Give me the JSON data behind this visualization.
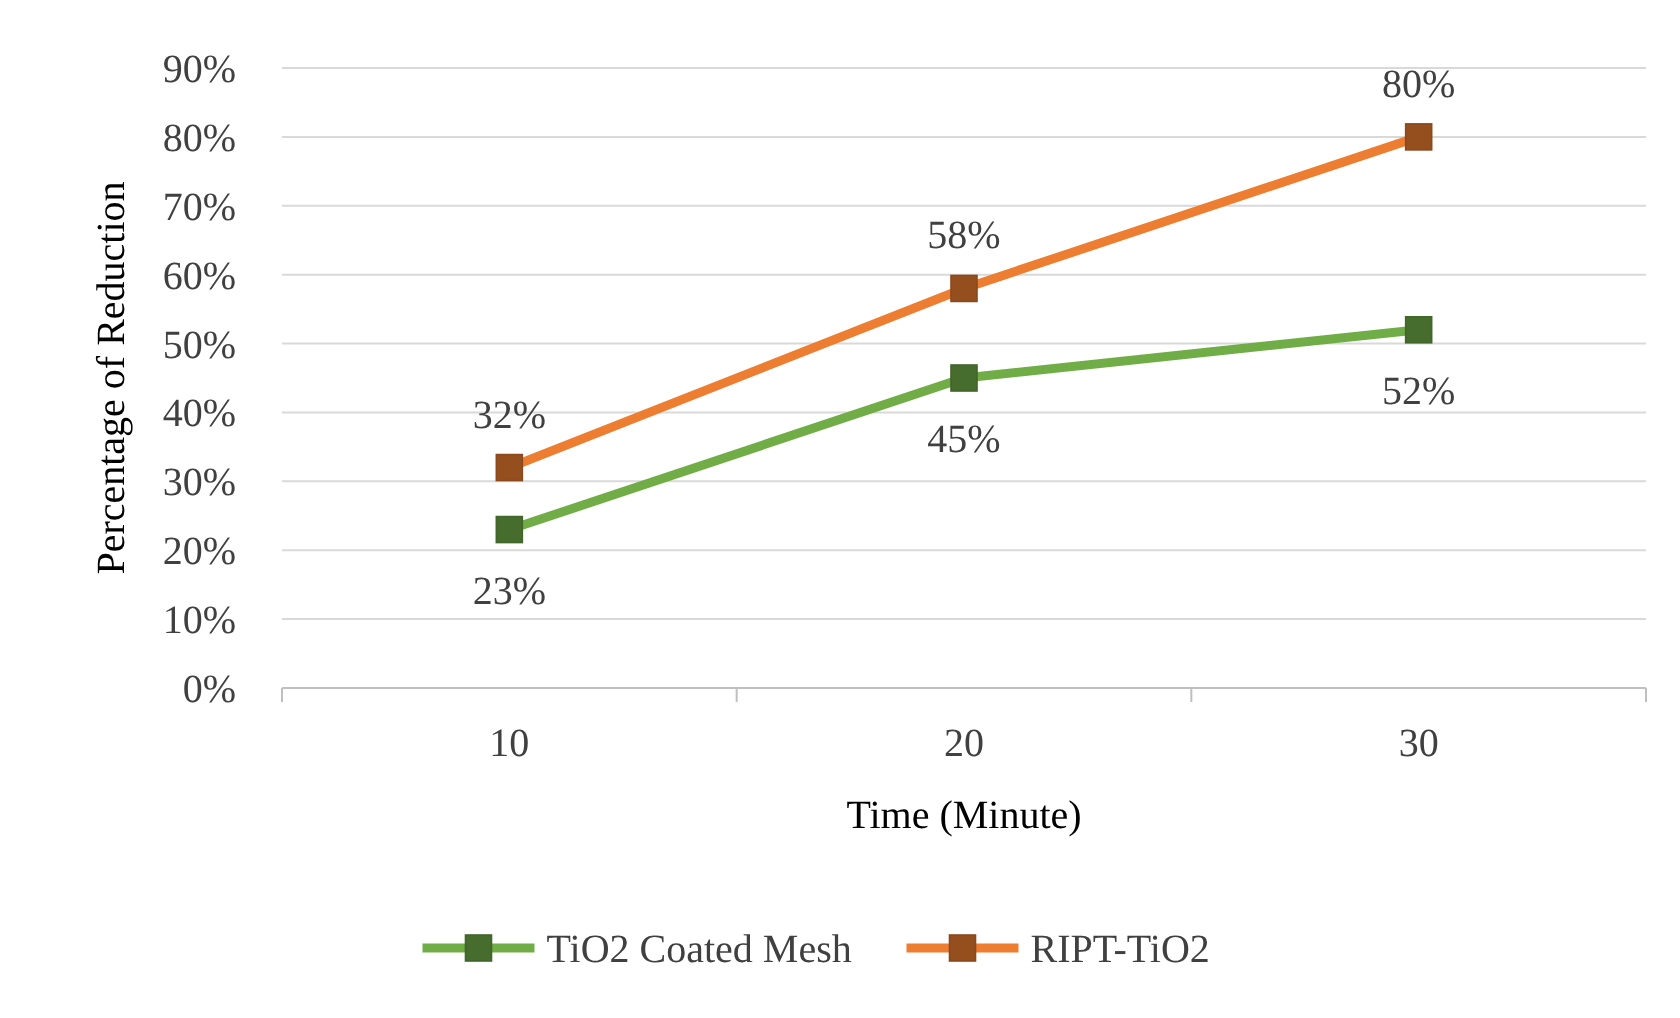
{
  "chart_data": {
    "type": "line",
    "xlabel": "Time (Minute)",
    "ylabel": "Percentage of Reduction",
    "categories": [
      "10",
      "20",
      "30"
    ],
    "ylim": [
      0,
      90
    ],
    "yticks": [
      {
        "value": 0,
        "label": "0%"
      },
      {
        "value": 10,
        "label": "10%"
      },
      {
        "value": 20,
        "label": "20%"
      },
      {
        "value": 30,
        "label": "30%"
      },
      {
        "value": 40,
        "label": "40%"
      },
      {
        "value": 50,
        "label": "50%"
      },
      {
        "value": 60,
        "label": "60%"
      },
      {
        "value": 70,
        "label": "70%"
      },
      {
        "value": 80,
        "label": "80%"
      },
      {
        "value": 90,
        "label": "90%"
      }
    ],
    "grid": "y",
    "legend": "bottom",
    "marker": "square",
    "line_style": "solid",
    "series": [
      {
        "name": "TiO2 Coated Mesh",
        "color": "#70ad47",
        "values": [
          23,
          45,
          52
        ],
        "value_labels": [
          "23%",
          "45%",
          "52%"
        ]
      },
      {
        "name": "RIPT-TiO2",
        "color": "#ed7d31",
        "values": [
          32,
          58,
          80
        ],
        "value_labels": [
          "32%",
          "58%",
          "80%"
        ]
      }
    ]
  }
}
